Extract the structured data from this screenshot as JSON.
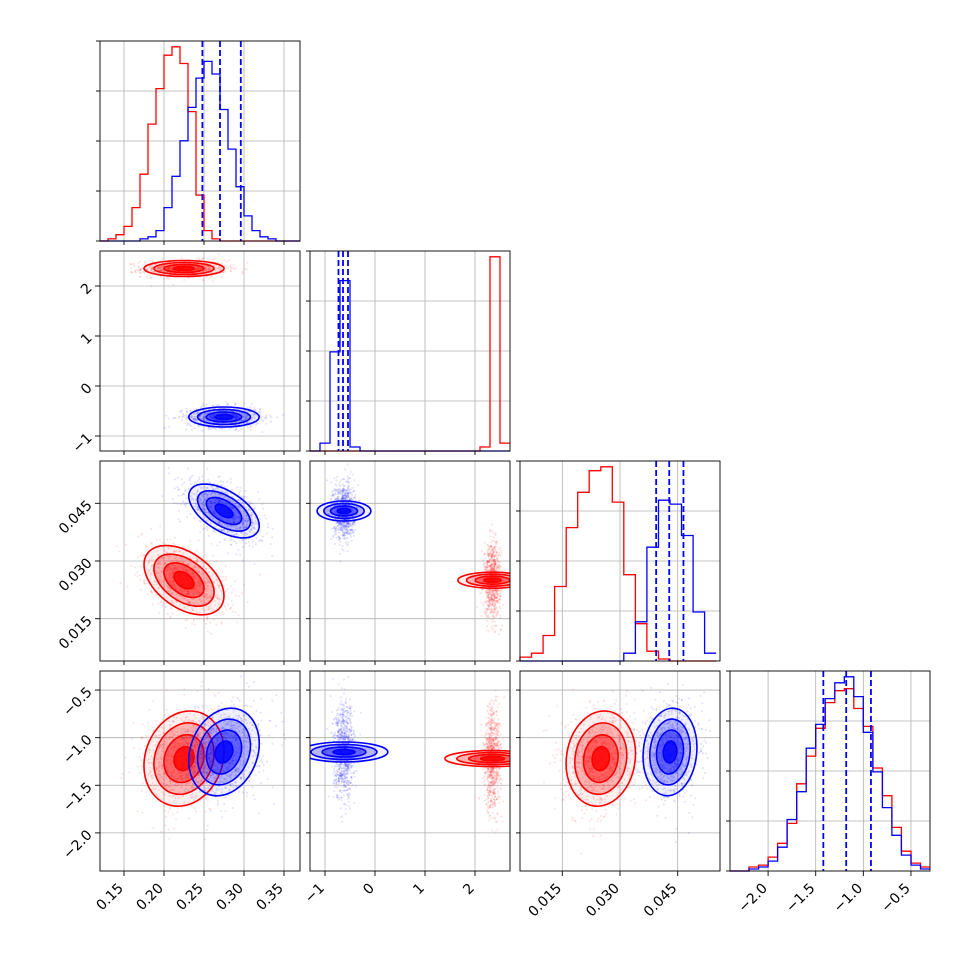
{
  "colors": {
    "red": "#ff0000",
    "blue": "#0000ff",
    "grid": "#b0b0b0",
    "axis": "#000000"
  },
  "chart_data": {
    "type": "corner",
    "grid": true,
    "parameters": [
      {
        "range": [
          0.12,
          0.37
        ],
        "ticks": [
          {
            "v": 0.15,
            "label": "0.15"
          },
          {
            "v": 0.2,
            "label": "0.20"
          },
          {
            "v": 0.25,
            "label": "0.25"
          },
          {
            "v": 0.3,
            "label": "0.30"
          },
          {
            "v": 0.35,
            "label": "0.35"
          }
        ]
      },
      {
        "range": [
          -1.3,
          2.7
        ],
        "ticks": [
          {
            "v": -1,
            "label": "−1"
          },
          {
            "v": 0,
            "label": "0"
          },
          {
            "v": 1,
            "label": "1"
          },
          {
            "v": 2,
            "label": "2"
          }
        ]
      },
      {
        "range": [
          0.004,
          0.056
        ],
        "ticks": [
          {
            "v": 0.015,
            "label": "0.015"
          },
          {
            "v": 0.03,
            "label": "0.030"
          },
          {
            "v": 0.045,
            "label": "0.045"
          }
        ]
      },
      {
        "range": [
          -2.4,
          -0.3
        ],
        "ticks": [
          {
            "v": -2.0,
            "label": "−2.0"
          },
          {
            "v": -1.5,
            "label": "−1.5"
          },
          {
            "v": -1.0,
            "label": "−1.0"
          },
          {
            "v": -0.5,
            "label": "−0.5"
          }
        ]
      }
    ],
    "series": [
      {
        "color": "#ff0000",
        "mean": [
          0.225,
          2.35,
          0.025,
          -1.22
        ],
        "sd": [
          0.025,
          0.08,
          0.0045,
          0.25
        ],
        "cov_2d": [
          {
            "i": 0,
            "j": 1,
            "rho": 0.0
          },
          {
            "i": 0,
            "j": 2,
            "rho": -0.45
          },
          {
            "i": 0,
            "j": 3,
            "rho": 0.15
          },
          {
            "i": 1,
            "j": 2,
            "rho": 0.0
          },
          {
            "i": 1,
            "j": 3,
            "rho": 0.0
          },
          {
            "i": 2,
            "j": 3,
            "rho": 0.1
          }
        ]
      },
      {
        "color": "#0000ff",
        "mean": [
          0.275,
          -0.62,
          0.043,
          -1.15
        ],
        "sd": [
          0.022,
          0.1,
          0.0035,
          0.23
        ],
        "cov_2d": [
          {
            "i": 0,
            "j": 1,
            "rho": 0.0
          },
          {
            "i": 0,
            "j": 2,
            "rho": -0.55
          },
          {
            "i": 0,
            "j": 3,
            "rho": 0.2
          },
          {
            "i": 1,
            "j": 2,
            "rho": 0.0
          },
          {
            "i": 1,
            "j": 3,
            "rho": 0.0
          },
          {
            "i": 2,
            "j": 3,
            "rho": 0.1
          }
        ]
      }
    ],
    "histograms": [
      {
        "param": 0,
        "bins": [
          0.12,
          0.13,
          0.14,
          0.15,
          0.16,
          0.17,
          0.18,
          0.19,
          0.2,
          0.21,
          0.22,
          0.23,
          0.24,
          0.25,
          0.26,
          0.27,
          0.28,
          0.29,
          0.3,
          0.31,
          0.32,
          0.33,
          0.34,
          0.35,
          0.36,
          0.37
        ],
        "red": [
          0,
          1,
          3,
          7,
          16,
          32,
          56,
          73,
          89,
          93,
          85,
          62,
          22,
          5,
          1,
          0,
          0,
          0,
          0,
          0,
          0,
          0,
          0,
          0,
          0
        ],
        "blue": [
          0,
          0,
          0,
          0,
          0,
          1,
          2,
          5,
          16,
          31,
          48,
          64,
          78,
          86,
          80,
          63,
          44,
          26,
          12,
          5,
          2,
          1,
          0,
          0,
          0
        ],
        "quantiles": [
          0.248,
          0.27,
          0.296
        ]
      },
      {
        "param": 1,
        "bins": [
          -1.3,
          -1.1,
          -0.9,
          -0.7,
          -0.5,
          -0.3,
          -0.1,
          0.1,
          0.3,
          0.5,
          0.7,
          0.9,
          1.1,
          1.3,
          1.5,
          1.7,
          1.9,
          2.1,
          2.3,
          2.5,
          2.7
        ],
        "red": [
          0,
          0,
          0,
          0,
          0,
          0,
          0,
          0,
          0,
          0,
          0,
          0,
          0,
          0,
          0,
          0,
          0,
          2,
          98,
          4
        ],
        "blue": [
          0,
          4,
          50,
          86,
          2,
          0,
          0,
          0,
          0,
          0,
          0,
          0,
          0,
          0,
          0,
          0,
          0,
          0,
          0,
          0
        ],
        "quantiles": [
          -0.73,
          -0.64,
          -0.54
        ]
      },
      {
        "param": 2,
        "bins": [
          0.004,
          0.007,
          0.01,
          0.013,
          0.016,
          0.019,
          0.022,
          0.025,
          0.028,
          0.031,
          0.034,
          0.037,
          0.04,
          0.043,
          0.046,
          0.049,
          0.052,
          0.055
        ],
        "red": [
          2,
          4,
          13,
          38,
          68,
          86,
          97,
          99,
          81,
          44,
          19,
          5,
          1,
          0,
          0,
          0,
          0
        ],
        "blue": [
          0,
          0,
          0,
          0,
          0,
          0,
          0,
          0,
          0,
          4,
          20,
          58,
          82,
          80,
          64,
          25,
          4
        ],
        "quantiles": [
          0.0394,
          0.0428,
          0.0465
        ]
      },
      {
        "param": 3,
        "bins": [
          -2.4,
          -2.3,
          -2.2,
          -2.1,
          -2.0,
          -1.9,
          -1.8,
          -1.7,
          -1.6,
          -1.5,
          -1.4,
          -1.3,
          -1.2,
          -1.1,
          -1.0,
          -0.9,
          -0.8,
          -0.7,
          -0.6,
          -0.5,
          -0.4,
          -0.3
        ],
        "red": [
          0,
          0,
          2,
          3,
          7,
          14,
          24,
          44,
          58,
          72,
          85,
          91,
          92,
          82,
          73,
          52,
          38,
          22,
          10,
          4,
          2
        ],
        "blue": [
          0,
          0,
          1,
          2,
          5,
          12,
          26,
          40,
          62,
          74,
          87,
          95,
          98,
          88,
          70,
          50,
          32,
          18,
          8,
          3,
          1
        ],
        "quantiles": [
          -1.42,
          -1.18,
          -0.92
        ]
      }
    ]
  }
}
